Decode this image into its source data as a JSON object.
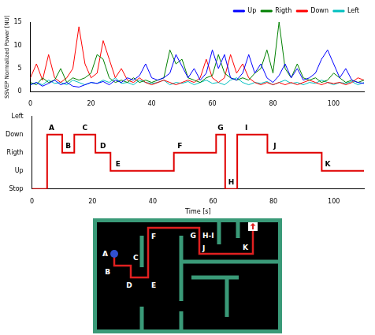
{
  "chart_data": [
    {
      "type": "line",
      "y_label": "SSVEP Normalized Power [NU]",
      "x": [
        0,
        2,
        4,
        6,
        8,
        10,
        12,
        14,
        16,
        18,
        20,
        22,
        24,
        26,
        28,
        30,
        32,
        34,
        36,
        38,
        40,
        42,
        44,
        46,
        48,
        50,
        52,
        54,
        56,
        58,
        60,
        62,
        64,
        66,
        68,
        70,
        72,
        74,
        76,
        78,
        80,
        82,
        84,
        86,
        88,
        90,
        92,
        94,
        96,
        98,
        100,
        102,
        104,
        106,
        108,
        110
      ],
      "series": [
        {
          "name": "Up",
          "color": "#0000ff",
          "values": [
            1.5,
            2,
            1.2,
            1.8,
            2.5,
            1.5,
            2,
            1.2,
            1,
            1.5,
            2,
            1.8,
            2.2,
            1.5,
            2.5,
            2,
            3,
            2.5,
            3.5,
            6,
            3,
            2.5,
            3,
            4,
            8,
            5.5,
            3,
            5,
            2.5,
            4,
            9,
            5,
            8,
            3,
            2.5,
            4,
            8,
            4,
            6,
            3,
            2,
            3.5,
            6,
            3,
            5,
            2.5,
            3,
            4,
            7,
            9,
            6,
            3,
            5,
            2.5,
            2,
            1.8
          ]
        },
        {
          "name": "Rigth",
          "color": "#008000",
          "values": [
            2,
            1.5,
            3,
            2,
            2.5,
            5,
            2,
            3,
            2.5,
            3,
            4,
            8,
            7,
            3,
            2,
            2.5,
            2,
            3,
            2,
            2.5,
            2,
            2.5,
            3,
            9,
            6,
            7,
            3,
            2.5,
            2,
            3,
            3.5,
            8,
            4,
            3,
            2.5,
            3,
            2.5,
            4,
            5,
            9,
            4,
            15,
            5,
            3,
            6,
            3,
            2.5,
            3,
            2,
            2.5,
            4,
            3,
            2,
            2.5,
            2,
            2.5
          ]
        },
        {
          "name": "Down",
          "color": "#ff0000",
          "values": [
            3,
            6,
            2.5,
            8,
            3,
            2,
            3,
            5,
            14,
            6,
            3,
            4,
            11,
            7,
            3,
            5,
            2.5,
            2,
            3,
            2,
            1.5,
            2,
            2.5,
            2,
            1.5,
            2,
            2.5,
            2,
            3,
            7,
            3,
            2,
            3,
            8,
            4,
            6,
            3,
            2,
            1.5,
            2,
            1.5,
            2,
            1.5,
            2,
            1.5,
            2,
            2.5,
            2,
            1.5,
            2,
            1.8,
            2,
            1.5,
            2,
            3,
            2.5
          ]
        },
        {
          "name": "Left",
          "color": "#00bfbf",
          "values": [
            1.5,
            2,
            1.5,
            2.5,
            1.8,
            2,
            1.5,
            2.5,
            2,
            1.5,
            2,
            1.8,
            2.5,
            2,
            3,
            1.8,
            2,
            1.5,
            2.5,
            2,
            1.8,
            2,
            2.5,
            1.5,
            2,
            1.8,
            2.2,
            1.5,
            2,
            2.5,
            1.8,
            2,
            1.5,
            2.5,
            3,
            2,
            1.5,
            2,
            1.8,
            2.2,
            1.5,
            2,
            2.5,
            1.8,
            2,
            1.5,
            2,
            1.8,
            2.5,
            2,
            1.5,
            2,
            1.8,
            2.2,
            1.5,
            2
          ]
        }
      ],
      "marker": "none",
      "xlim": [
        0,
        110
      ],
      "xticks": [
        0,
        20,
        40,
        60,
        80,
        100
      ],
      "ylim": [
        0,
        15
      ],
      "yticks": [
        0,
        5,
        10,
        15
      ],
      "grid": false,
      "legend": "top right"
    },
    {
      "type": "line",
      "x_label": "Time [s]",
      "x": [
        0,
        5,
        10,
        14,
        21,
        26,
        47,
        61,
        64,
        68,
        78,
        96,
        110
      ],
      "values": [
        0,
        3,
        2,
        3,
        2,
        1,
        2,
        3,
        0,
        3,
        2,
        1,
        1
      ],
      "color": "#e00000",
      "line_style": "step",
      "marker": "none",
      "xlim": [
        0,
        110
      ],
      "xticks": [
        0,
        20,
        40,
        60,
        80,
        100
      ],
      "ylim": [
        0,
        4
      ],
      "yticks": [
        {
          "value": 0,
          "label": "Stop"
        },
        {
          "value": 1,
          "label": "Up"
        },
        {
          "value": 2,
          "label": "Rigth"
        },
        {
          "value": 3,
          "label": "Down"
        },
        {
          "value": 4,
          "label": "Left"
        }
      ],
      "grid": false,
      "annotations": [
        {
          "text": "A",
          "x": 6.5,
          "y": 3.35
        },
        {
          "text": "B",
          "x": 12,
          "y": 2.35
        },
        {
          "text": "C",
          "x": 17.5,
          "y": 3.35
        },
        {
          "text": "D",
          "x": 23.5,
          "y": 2.35
        },
        {
          "text": "E",
          "x": 28.5,
          "y": 1.35
        },
        {
          "text": "F",
          "x": 49,
          "y": 2.35
        },
        {
          "text": "G",
          "x": 62.5,
          "y": 3.35
        },
        {
          "text": "H",
          "x": 66,
          "y": 0.35
        },
        {
          "text": "I",
          "x": 71,
          "y": 3.35
        },
        {
          "text": "J",
          "x": 80.5,
          "y": 2.35
        },
        {
          "text": "K",
          "x": 98,
          "y": 1.35
        }
      ]
    }
  ],
  "maze": {
    "labels": [
      "A",
      "B",
      "C",
      "D",
      "E",
      "F",
      "G",
      "H-I",
      "J",
      "K"
    ]
  }
}
